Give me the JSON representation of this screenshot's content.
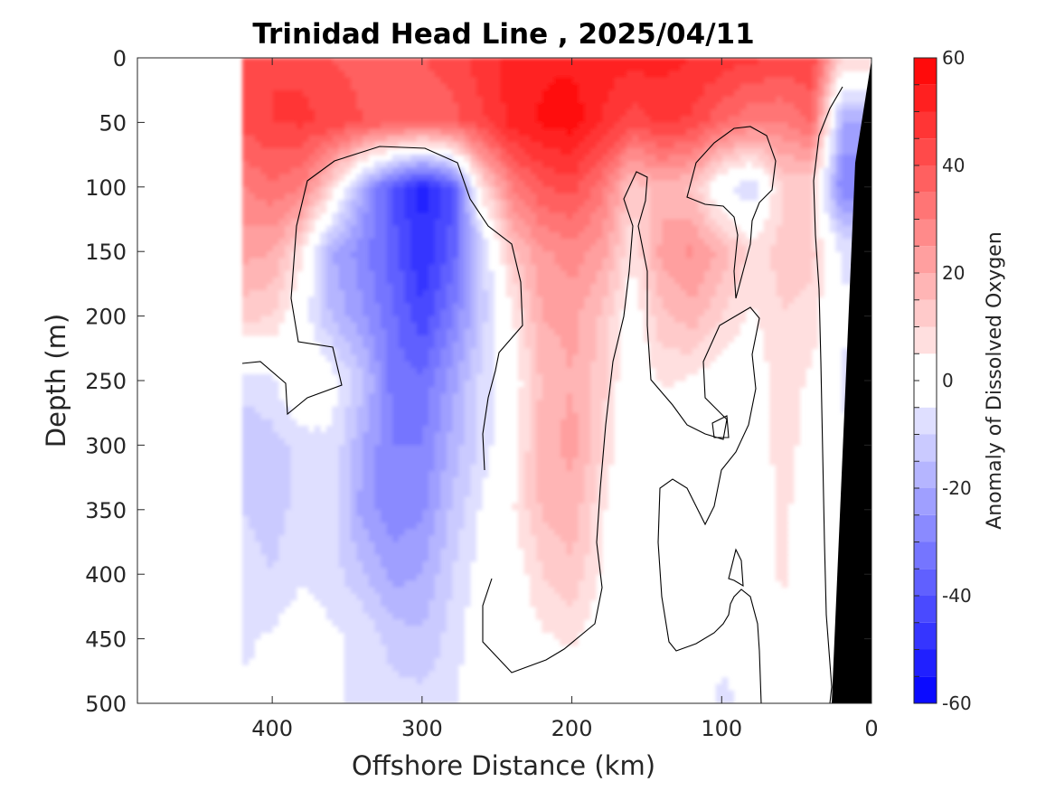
{
  "chart_data": {
    "type": "heatmap",
    "title": "Trinidad Head Line , 2025/04/11",
    "xlabel": "Offshore Distance (km)",
    "ylabel": "Depth (m)",
    "xlim": [
      490,
      0
    ],
    "ylim": [
      0,
      500
    ],
    "x_reversed": true,
    "y_reversed": true,
    "x_ticks": [
      400,
      300,
      200,
      100,
      0
    ],
    "y_ticks": [
      0,
      50,
      100,
      150,
      200,
      250,
      300,
      350,
      400,
      450,
      500
    ],
    "colorbar": {
      "label": "Anomaly of Dissolved Oxygen",
      "range": [
        -60,
        60
      ],
      "step": 5,
      "ticks": [
        60,
        40,
        20,
        0,
        -20,
        -40,
        -60
      ],
      "color_positive": "#ff0000",
      "color_negative": "#0000ff",
      "color_zero": "#ffffff"
    },
    "data_extent_km": [
      0,
      420
    ],
    "bathymetry_color": "#000000",
    "contour_level": 0,
    "features": [
      {
        "name": "Surface positive anomaly",
        "x_range": [
          20,
          420
        ],
        "depth_range": [
          0,
          80
        ],
        "value": 55
      },
      {
        "name": "Subsurface negative core",
        "x_range": [
          270,
          350
        ],
        "depth_range": [
          100,
          350
        ],
        "value": -55
      },
      {
        "name": "Positive column",
        "x_range": [
          170,
          240
        ],
        "depth_range": [
          80,
          440
        ],
        "value": 25
      },
      {
        "name": "Nearshore negative",
        "x_range": [
          0,
          30
        ],
        "depth_range": [
          50,
          120
        ],
        "value": -40
      }
    ],
    "field_points": [
      [
        420,
        0,
        44
      ],
      [
        420,
        50,
        42
      ],
      [
        420,
        100,
        30
      ],
      [
        420,
        150,
        22
      ],
      [
        420,
        200,
        12
      ],
      [
        420,
        250,
        -8
      ],
      [
        420,
        300,
        -14
      ],
      [
        420,
        350,
        -10
      ],
      [
        420,
        400,
        -8
      ],
      [
        420,
        450,
        -6
      ],
      [
        420,
        500,
        -4
      ],
      [
        400,
        0,
        45
      ],
      [
        400,
        50,
        45
      ],
      [
        400,
        100,
        34
      ],
      [
        400,
        150,
        20
      ],
      [
        400,
        200,
        10
      ],
      [
        400,
        250,
        -6
      ],
      [
        400,
        300,
        -12
      ],
      [
        400,
        350,
        -12
      ],
      [
        400,
        400,
        -10
      ],
      [
        400,
        450,
        -4
      ],
      [
        400,
        500,
        -4
      ],
      [
        380,
        0,
        44
      ],
      [
        380,
        50,
        46
      ],
      [
        380,
        100,
        30
      ],
      [
        380,
        150,
        6
      ],
      [
        380,
        200,
        -2
      ],
      [
        380,
        250,
        4
      ],
      [
        380,
        300,
        -8
      ],
      [
        380,
        350,
        -8
      ],
      [
        380,
        400,
        -6
      ],
      [
        380,
        450,
        0
      ],
      [
        380,
        500,
        0
      ],
      [
        360,
        0,
        40
      ],
      [
        360,
        50,
        44
      ],
      [
        360,
        100,
        8
      ],
      [
        360,
        150,
        -20
      ],
      [
        360,
        200,
        -16
      ],
      [
        360,
        250,
        -2
      ],
      [
        360,
        300,
        -6
      ],
      [
        360,
        350,
        -8
      ],
      [
        360,
        400,
        -8
      ],
      [
        360,
        450,
        -4
      ],
      [
        360,
        500,
        -4
      ],
      [
        340,
        0,
        38
      ],
      [
        340,
        50,
        40
      ],
      [
        340,
        100,
        -20
      ],
      [
        340,
        150,
        -28
      ],
      [
        340,
        200,
        -24
      ],
      [
        340,
        250,
        -14
      ],
      [
        340,
        300,
        -20
      ],
      [
        340,
        350,
        -22
      ],
      [
        340,
        400,
        -14
      ],
      [
        340,
        450,
        -6
      ],
      [
        340,
        500,
        -6
      ],
      [
        320,
        0,
        40
      ],
      [
        320,
        50,
        38
      ],
      [
        320,
        100,
        -40
      ],
      [
        320,
        150,
        -38
      ],
      [
        320,
        200,
        -34
      ],
      [
        320,
        250,
        -32
      ],
      [
        320,
        300,
        -30
      ],
      [
        320,
        350,
        -28
      ],
      [
        320,
        400,
        -22
      ],
      [
        320,
        450,
        -12
      ],
      [
        320,
        500,
        -8
      ],
      [
        300,
        0,
        40
      ],
      [
        300,
        50,
        36
      ],
      [
        300,
        100,
        -52
      ],
      [
        300,
        150,
        -50
      ],
      [
        300,
        200,
        -44
      ],
      [
        300,
        250,
        -34
      ],
      [
        300,
        300,
        -30
      ],
      [
        300,
        350,
        -26
      ],
      [
        300,
        400,
        -20
      ],
      [
        300,
        450,
        -14
      ],
      [
        300,
        500,
        -8
      ],
      [
        280,
        0,
        42
      ],
      [
        280,
        50,
        38
      ],
      [
        280,
        100,
        -40
      ],
      [
        280,
        150,
        -38
      ],
      [
        280,
        200,
        -30
      ],
      [
        280,
        250,
        -22
      ],
      [
        280,
        300,
        -18
      ],
      [
        280,
        350,
        -14
      ],
      [
        280,
        400,
        -10
      ],
      [
        280,
        450,
        -8
      ],
      [
        280,
        500,
        -6
      ],
      [
        260,
        0,
        48
      ],
      [
        260,
        50,
        44
      ],
      [
        260,
        100,
        8
      ],
      [
        260,
        150,
        -12
      ],
      [
        260,
        200,
        -12
      ],
      [
        260,
        250,
        -8
      ],
      [
        260,
        300,
        -8
      ],
      [
        260,
        350,
        -4
      ],
      [
        260,
        400,
        -2
      ],
      [
        260,
        450,
        0
      ],
      [
        260,
        500,
        0
      ],
      [
        240,
        0,
        52
      ],
      [
        240,
        50,
        52
      ],
      [
        240,
        100,
        30
      ],
      [
        240,
        150,
        14
      ],
      [
        240,
        200,
        4
      ],
      [
        240,
        250,
        0
      ],
      [
        240,
        300,
        2
      ],
      [
        240,
        350,
        4
      ],
      [
        240,
        400,
        0
      ],
      [
        240,
        450,
        0
      ],
      [
        240,
        500,
        0
      ],
      [
        220,
        0,
        54
      ],
      [
        220,
        50,
        56
      ],
      [
        220,
        100,
        40
      ],
      [
        220,
        150,
        24
      ],
      [
        220,
        200,
        20
      ],
      [
        220,
        250,
        16
      ],
      [
        220,
        300,
        18
      ],
      [
        220,
        350,
        16
      ],
      [
        220,
        400,
        10
      ],
      [
        220,
        450,
        4
      ],
      [
        220,
        500,
        0
      ],
      [
        200,
        0,
        54
      ],
      [
        200,
        50,
        58
      ],
      [
        200,
        100,
        42
      ],
      [
        200,
        150,
        28
      ],
      [
        200,
        200,
        22
      ],
      [
        200,
        250,
        20
      ],
      [
        200,
        300,
        22
      ],
      [
        200,
        350,
        18
      ],
      [
        200,
        400,
        14
      ],
      [
        200,
        450,
        6
      ],
      [
        200,
        500,
        0
      ],
      [
        180,
        0,
        52
      ],
      [
        180,
        50,
        50
      ],
      [
        180,
        100,
        32
      ],
      [
        180,
        150,
        22
      ],
      [
        180,
        200,
        14
      ],
      [
        180,
        250,
        12
      ],
      [
        180,
        300,
        10
      ],
      [
        180,
        350,
        6
      ],
      [
        180,
        400,
        4
      ],
      [
        180,
        450,
        0
      ],
      [
        180,
        500,
        0
      ],
      [
        160,
        0,
        52
      ],
      [
        160,
        50,
        42
      ],
      [
        160,
        100,
        12
      ],
      [
        160,
        150,
        6
      ],
      [
        160,
        200,
        0
      ],
      [
        160,
        250,
        -2
      ],
      [
        160,
        300,
        -4
      ],
      [
        160,
        350,
        -4
      ],
      [
        160,
        400,
        -2
      ],
      [
        160,
        450,
        -4
      ],
      [
        160,
        500,
        -4
      ],
      [
        140,
        0,
        52
      ],
      [
        140,
        50,
        46
      ],
      [
        140,
        100,
        18
      ],
      [
        140,
        150,
        22
      ],
      [
        140,
        200,
        14
      ],
      [
        140,
        250,
        6
      ],
      [
        140,
        300,
        0
      ],
      [
        140,
        350,
        0
      ],
      [
        140,
        400,
        -4
      ],
      [
        140,
        450,
        -4
      ],
      [
        140,
        500,
        -4
      ],
      [
        120,
        0,
        50
      ],
      [
        120,
        50,
        44
      ],
      [
        120,
        100,
        14
      ],
      [
        120,
        150,
        26
      ],
      [
        120,
        200,
        18
      ],
      [
        120,
        250,
        4
      ],
      [
        120,
        300,
        0
      ],
      [
        120,
        350,
        0
      ],
      [
        120,
        400,
        0
      ],
      [
        120,
        450,
        -2
      ],
      [
        120,
        500,
        -2
      ],
      [
        100,
        0,
        48
      ],
      [
        100,
        50,
        36
      ],
      [
        100,
        100,
        -4
      ],
      [
        100,
        150,
        18
      ],
      [
        100,
        200,
        10
      ],
      [
        100,
        250,
        0
      ],
      [
        100,
        300,
        0
      ],
      [
        100,
        350,
        0
      ],
      [
        100,
        400,
        0
      ],
      [
        100,
        450,
        -4
      ],
      [
        100,
        500,
        -6
      ],
      [
        80,
        0,
        46
      ],
      [
        80,
        50,
        30
      ],
      [
        80,
        100,
        -10
      ],
      [
        80,
        150,
        8
      ],
      [
        80,
        200,
        4
      ],
      [
        80,
        250,
        0
      ],
      [
        80,
        300,
        0
      ],
      [
        80,
        350,
        -2
      ],
      [
        80,
        400,
        0
      ],
      [
        80,
        450,
        0
      ],
      [
        80,
        500,
        -4
      ],
      [
        60,
        0,
        44
      ],
      [
        60,
        50,
        30
      ],
      [
        60,
        100,
        10
      ],
      [
        60,
        150,
        12
      ],
      [
        60,
        200,
        10
      ],
      [
        60,
        250,
        8
      ],
      [
        60,
        300,
        8
      ],
      [
        60,
        350,
        6
      ],
      [
        60,
        400,
        6
      ],
      [
        60,
        450,
        2
      ],
      [
        60,
        500,
        2
      ],
      [
        40,
        0,
        44
      ],
      [
        40,
        50,
        36
      ],
      [
        40,
        100,
        10
      ],
      [
        40,
        150,
        12
      ],
      [
        40,
        200,
        8
      ],
      [
        40,
        250,
        4
      ],
      [
        40,
        300,
        2
      ],
      [
        40,
        350,
        2
      ],
      [
        40,
        400,
        2
      ],
      [
        40,
        450,
        0
      ],
      [
        40,
        500,
        0
      ],
      [
        20,
        0,
        10
      ],
      [
        20,
        50,
        -20
      ],
      [
        20,
        100,
        -30
      ],
      [
        20,
        150,
        -6
      ],
      [
        20,
        200,
        -4
      ],
      [
        20,
        250,
        -6
      ],
      [
        20,
        300,
        -4
      ],
      [
        20,
        350,
        -4
      ],
      [
        20,
        400,
        -2
      ],
      [
        20,
        450,
        -2
      ],
      [
        20,
        500,
        -2
      ]
    ]
  }
}
